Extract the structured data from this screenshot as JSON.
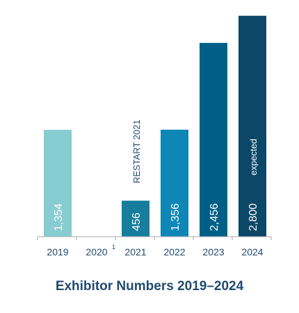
{
  "chart_data": {
    "type": "bar",
    "title": "Exhibitor Numbers 2019–2024",
    "xlabel": "",
    "ylabel": "",
    "ylim": [
      0,
      3000
    ],
    "grid": false,
    "categories": [
      "2019",
      "2020",
      "2021",
      "2022",
      "2023",
      "2024"
    ],
    "category_superscripts": [
      "",
      "1",
      "",
      "",
      "",
      ""
    ],
    "values": [
      1354,
      null,
      456,
      1356,
      2456,
      2800
    ],
    "value_labels": [
      "1,354",
      "",
      "456",
      "1,356",
      "2,456",
      "2,800"
    ],
    "bar_colors": [
      "#86ccd1",
      null,
      "#167d9e",
      "#0e86b6",
      "#005f86",
      "#0b4766"
    ],
    "annotations": [
      {
        "category": "2021",
        "text": "RESTART 2021"
      },
      {
        "category": "2024",
        "text": "expected"
      }
    ]
  },
  "colors": {
    "title": "#1f4a6e",
    "axis": "#a7a9ac",
    "tick_label": "#1f4a6e",
    "value_label": "#ffffff",
    "annotation_dark": "#1f4a6e",
    "annotation_light": "#ffffff"
  }
}
